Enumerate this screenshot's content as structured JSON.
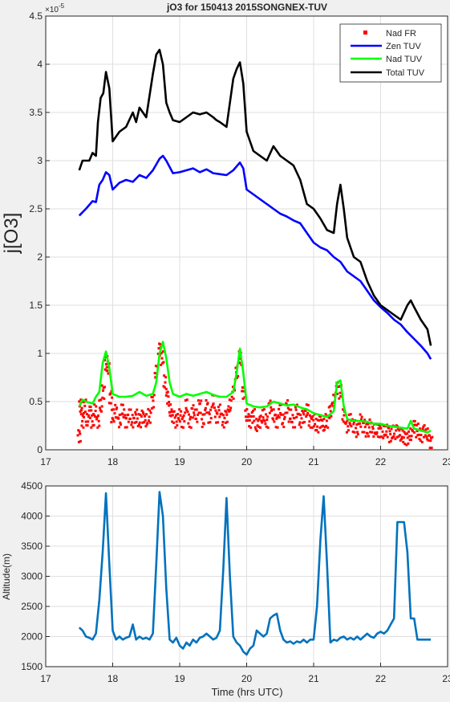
{
  "chart_data": [
    {
      "type": "line",
      "title": "jO3 for 150413 2015SONGNEX-TUV",
      "xlabel": "",
      "ylabel": "j[O3]",
      "y_exponent_label": "×10",
      "y_exponent_power": "-5",
      "xlim": [
        17,
        23
      ],
      "ylim": [
        0,
        4.5
      ],
      "xticks": [
        "17",
        "18",
        "19",
        "20",
        "21",
        "22",
        "23"
      ],
      "yticks": [
        "0",
        "0.5",
        "1",
        "1.5",
        "2",
        "2.5",
        "3",
        "3.5",
        "4",
        "4.5"
      ],
      "grid": true,
      "legend_position": "top-right",
      "series": [
        {
          "name": "Nad FR",
          "style": "markers",
          "color": "#ff0000",
          "x": [
            17.5,
            17.52,
            17.55,
            17.58,
            17.62,
            17.66,
            17.7,
            17.74,
            17.78,
            17.82,
            17.86,
            17.9,
            17.93,
            17.97,
            18.0,
            18.05,
            18.1,
            18.15,
            18.2,
            18.25,
            18.3,
            18.35,
            18.4,
            18.45,
            18.5,
            18.55,
            18.6,
            18.65,
            18.7,
            18.74,
            18.78,
            18.82,
            18.86,
            18.9,
            18.95,
            19.0,
            19.05,
            19.1,
            19.15,
            19.2,
            19.25,
            19.3,
            19.35,
            19.4,
            19.45,
            19.5,
            19.55,
            19.6,
            19.65,
            19.7,
            19.75,
            19.8,
            19.85,
            19.9,
            19.95,
            20.0,
            20.05,
            20.1,
            20.15,
            20.2,
            20.25,
            20.3,
            20.35,
            20.4,
            20.45,
            20.5,
            20.55,
            20.6,
            20.65,
            20.7,
            20.75,
            20.8,
            20.85,
            20.9,
            20.95,
            21.0,
            21.05,
            21.1,
            21.15,
            21.2,
            21.25,
            21.3,
            21.35,
            21.4,
            21.45,
            21.5,
            21.55,
            21.6,
            21.65,
            21.7,
            21.75,
            21.8,
            21.85,
            21.9,
            21.95,
            22.0,
            22.05,
            22.1,
            22.15,
            22.2,
            22.25,
            22.3,
            22.35,
            22.4,
            22.45,
            22.5,
            22.55,
            22.6,
            22.65,
            22.7,
            22.75
          ],
          "values": [
            0.15,
            0.45,
            0.3,
            0.45,
            0.3,
            0.4,
            0.3,
            0.4,
            0.3,
            0.45,
            0.6,
            0.9,
            0.85,
            0.55,
            0.35,
            0.4,
            0.3,
            0.4,
            0.3,
            0.35,
            0.3,
            0.35,
            0.3,
            0.35,
            0.3,
            0.35,
            0.5,
            0.8,
            1.05,
            0.95,
            0.7,
            0.55,
            0.4,
            0.35,
            0.3,
            0.35,
            0.3,
            0.45,
            0.3,
            0.4,
            0.35,
            0.45,
            0.3,
            0.45,
            0.35,
            0.5,
            0.35,
            0.4,
            0.3,
            0.35,
            0.45,
            0.6,
            0.8,
            0.95,
            0.6,
            0.35,
            0.3,
            0.35,
            0.25,
            0.3,
            0.35,
            0.3,
            0.45,
            0.35,
            0.3,
            0.4,
            0.3,
            0.45,
            0.35,
            0.3,
            0.4,
            0.3,
            0.35,
            0.4,
            0.3,
            0.3,
            0.25,
            0.3,
            0.25,
            0.3,
            0.4,
            0.5,
            0.65,
            0.6,
            0.35,
            0.25,
            0.3,
            0.25,
            0.2,
            0.3,
            0.25,
            0.2,
            0.25,
            0.2,
            0.2,
            0.2,
            0.18,
            0.2,
            0.15,
            0.18,
            0.2,
            0.15,
            0.13,
            0.12,
            0.15,
            0.25,
            0.2,
            0.15,
            0.2,
            0.15,
            0.08
          ]
        },
        {
          "name": "Zen TUV",
          "style": "line",
          "color": "#0000ff",
          "x": [
            17.5,
            17.6,
            17.7,
            17.75,
            17.8,
            17.85,
            17.9,
            17.95,
            18.0,
            18.1,
            18.2,
            18.3,
            18.4,
            18.5,
            18.6,
            18.7,
            18.75,
            18.8,
            18.9,
            19.0,
            19.1,
            19.2,
            19.3,
            19.4,
            19.5,
            19.6,
            19.7,
            19.8,
            19.9,
            19.95,
            20.0,
            20.1,
            20.2,
            20.3,
            20.4,
            20.5,
            20.6,
            20.7,
            20.8,
            20.9,
            21.0,
            21.1,
            21.2,
            21.3,
            21.4,
            21.5,
            21.6,
            21.7,
            21.8,
            21.9,
            22.0,
            22.1,
            22.2,
            22.3,
            22.4,
            22.5,
            22.6,
            22.7,
            22.75
          ],
          "values": [
            2.43,
            2.5,
            2.58,
            2.57,
            2.75,
            2.8,
            2.88,
            2.85,
            2.7,
            2.77,
            2.8,
            2.78,
            2.85,
            2.82,
            2.9,
            3.02,
            3.05,
            3.0,
            2.87,
            2.88,
            2.9,
            2.92,
            2.88,
            2.91,
            2.87,
            2.86,
            2.85,
            2.9,
            2.98,
            2.92,
            2.7,
            2.65,
            2.6,
            2.55,
            2.5,
            2.45,
            2.42,
            2.38,
            2.35,
            2.25,
            2.15,
            2.1,
            2.07,
            2.0,
            1.95,
            1.85,
            1.8,
            1.75,
            1.65,
            1.55,
            1.48,
            1.42,
            1.35,
            1.3,
            1.22,
            1.15,
            1.08,
            1.0,
            0.94
          ]
        },
        {
          "name": "Nad TUV",
          "style": "line",
          "color": "#00ff00",
          "x": [
            17.5,
            17.55,
            17.6,
            17.7,
            17.75,
            17.8,
            17.85,
            17.9,
            17.95,
            18.0,
            18.1,
            18.2,
            18.3,
            18.4,
            18.5,
            18.6,
            18.65,
            18.7,
            18.75,
            18.8,
            18.85,
            18.9,
            19.0,
            19.1,
            19.2,
            19.3,
            19.4,
            19.5,
            19.6,
            19.7,
            19.8,
            19.85,
            19.9,
            19.95,
            20.0,
            20.1,
            20.2,
            20.3,
            20.4,
            20.5,
            20.6,
            20.7,
            20.8,
            20.9,
            21.0,
            21.1,
            21.2,
            21.3,
            21.35,
            21.4,
            21.45,
            21.5,
            21.6,
            21.7,
            21.8,
            21.9,
            22.0,
            22.1,
            22.2,
            22.3,
            22.4,
            22.45,
            22.5,
            22.6,
            22.7,
            22.75
          ],
          "values": [
            0.45,
            0.52,
            0.5,
            0.48,
            0.55,
            0.6,
            0.9,
            1.02,
            0.85,
            0.58,
            0.55,
            0.55,
            0.56,
            0.6,
            0.56,
            0.58,
            0.7,
            1.0,
            1.12,
            0.95,
            0.7,
            0.58,
            0.55,
            0.58,
            0.56,
            0.58,
            0.6,
            0.57,
            0.55,
            0.55,
            0.6,
            0.8,
            1.05,
            0.8,
            0.48,
            0.45,
            0.44,
            0.45,
            0.5,
            0.48,
            0.46,
            0.47,
            0.44,
            0.42,
            0.38,
            0.36,
            0.34,
            0.4,
            0.7,
            0.72,
            0.45,
            0.32,
            0.3,
            0.3,
            0.29,
            0.27,
            0.27,
            0.25,
            0.24,
            0.23,
            0.22,
            0.3,
            0.22,
            0.2,
            0.18,
            0.2
          ]
        },
        {
          "name": "Total TUV",
          "style": "line",
          "color": "#000000",
          "x": [
            17.5,
            17.55,
            17.6,
            17.65,
            17.7,
            17.75,
            17.78,
            17.82,
            17.86,
            17.9,
            17.95,
            18.0,
            18.05,
            18.1,
            18.2,
            18.3,
            18.35,
            18.4,
            18.5,
            18.6,
            18.65,
            18.7,
            18.75,
            18.8,
            18.85,
            18.9,
            19.0,
            19.1,
            19.2,
            19.3,
            19.4,
            19.5,
            19.55,
            19.6,
            19.7,
            19.75,
            19.8,
            19.85,
            19.9,
            19.95,
            20.0,
            20.05,
            20.1,
            20.2,
            20.3,
            20.4,
            20.5,
            20.6,
            20.7,
            20.8,
            20.9,
            21.0,
            21.1,
            21.2,
            21.3,
            21.35,
            21.4,
            21.45,
            21.5,
            21.6,
            21.7,
            21.8,
            21.9,
            22.0,
            22.1,
            22.2,
            22.3,
            22.4,
            22.45,
            22.5,
            22.6,
            22.7,
            22.75
          ],
          "values": [
            2.9,
            3.0,
            3.0,
            3.0,
            3.08,
            3.05,
            3.4,
            3.65,
            3.7,
            3.92,
            3.75,
            3.2,
            3.25,
            3.3,
            3.35,
            3.5,
            3.4,
            3.55,
            3.45,
            3.9,
            4.1,
            4.15,
            4.0,
            3.6,
            3.5,
            3.42,
            3.4,
            3.45,
            3.5,
            3.48,
            3.5,
            3.45,
            3.42,
            3.4,
            3.35,
            3.6,
            3.85,
            3.95,
            4.02,
            3.8,
            3.3,
            3.2,
            3.1,
            3.05,
            3.0,
            3.15,
            3.05,
            3.0,
            2.95,
            2.8,
            2.55,
            2.5,
            2.4,
            2.28,
            2.25,
            2.55,
            2.75,
            2.5,
            2.2,
            2.0,
            1.95,
            1.75,
            1.6,
            1.5,
            1.45,
            1.4,
            1.35,
            1.5,
            1.55,
            1.48,
            1.35,
            1.25,
            1.08
          ]
        }
      ]
    },
    {
      "type": "line",
      "title": "",
      "xlabel": "Time (hrs UTC)",
      "ylabel": "Altitude(m)",
      "xlim": [
        17,
        23
      ],
      "ylim": [
        1500,
        4500
      ],
      "xticks": [
        "17",
        "18",
        "19",
        "20",
        "21",
        "22",
        "23"
      ],
      "yticks": [
        "1500",
        "2000",
        "2500",
        "3000",
        "3500",
        "4000",
        "4500"
      ],
      "grid": true,
      "series": [
        {
          "color": "#0072bd",
          "x": [
            17.5,
            17.55,
            17.6,
            17.65,
            17.7,
            17.75,
            17.8,
            17.85,
            17.9,
            17.95,
            18.0,
            18.05,
            18.1,
            18.15,
            18.2,
            18.25,
            18.3,
            18.35,
            18.4,
            18.45,
            18.5,
            18.55,
            18.6,
            18.65,
            18.7,
            18.75,
            18.8,
            18.85,
            18.9,
            18.95,
            19.0,
            19.05,
            19.1,
            19.15,
            19.2,
            19.25,
            19.3,
            19.35,
            19.4,
            19.45,
            19.5,
            19.55,
            19.6,
            19.65,
            19.7,
            19.75,
            19.8,
            19.85,
            19.9,
            19.95,
            20.0,
            20.05,
            20.1,
            20.15,
            20.2,
            20.25,
            20.3,
            20.35,
            20.4,
            20.45,
            20.5,
            20.55,
            20.6,
            20.65,
            20.7,
            20.75,
            20.8,
            20.85,
            20.9,
            20.95,
            21.0,
            21.05,
            21.1,
            21.15,
            21.2,
            21.25,
            21.3,
            21.35,
            21.4,
            21.45,
            21.5,
            21.55,
            21.6,
            21.65,
            21.7,
            21.75,
            21.8,
            21.85,
            21.9,
            21.95,
            22.0,
            22.05,
            22.1,
            22.15,
            22.2,
            22.25,
            22.3,
            22.35,
            22.4,
            22.45,
            22.5,
            22.55,
            22.6,
            22.65,
            22.7,
            22.75
          ],
          "values": [
            2150,
            2100,
            2000,
            1980,
            1950,
            2050,
            2600,
            3400,
            4380,
            3200,
            2100,
            1950,
            2000,
            1950,
            1980,
            2000,
            2200,
            1950,
            2000,
            1960,
            1980,
            1950,
            2050,
            3200,
            4400,
            4000,
            2800,
            1950,
            1900,
            1980,
            1850,
            1800,
            1900,
            1850,
            1950,
            1900,
            1980,
            2000,
            2050,
            2000,
            1950,
            1980,
            2100,
            3100,
            4300,
            3000,
            2000,
            1900,
            1850,
            1750,
            1700,
            1800,
            1850,
            2100,
            2050,
            2000,
            2050,
            2300,
            2350,
            2380,
            2100,
            1950,
            1900,
            1920,
            1880,
            1920,
            1900,
            1950,
            1900,
            1950,
            1950,
            2500,
            3600,
            4330,
            3200,
            1900,
            1950,
            1930,
            1980,
            2000,
            1950,
            1980,
            1950,
            2000,
            1950,
            2000,
            2050,
            2000,
            1980,
            2050,
            2080,
            2050,
            2100,
            2200,
            2300,
            3900,
            3900,
            3900,
            3400,
            2300,
            2300,
            1950,
            1950,
            1950,
            1950,
            1950
          ]
        }
      ]
    }
  ]
}
